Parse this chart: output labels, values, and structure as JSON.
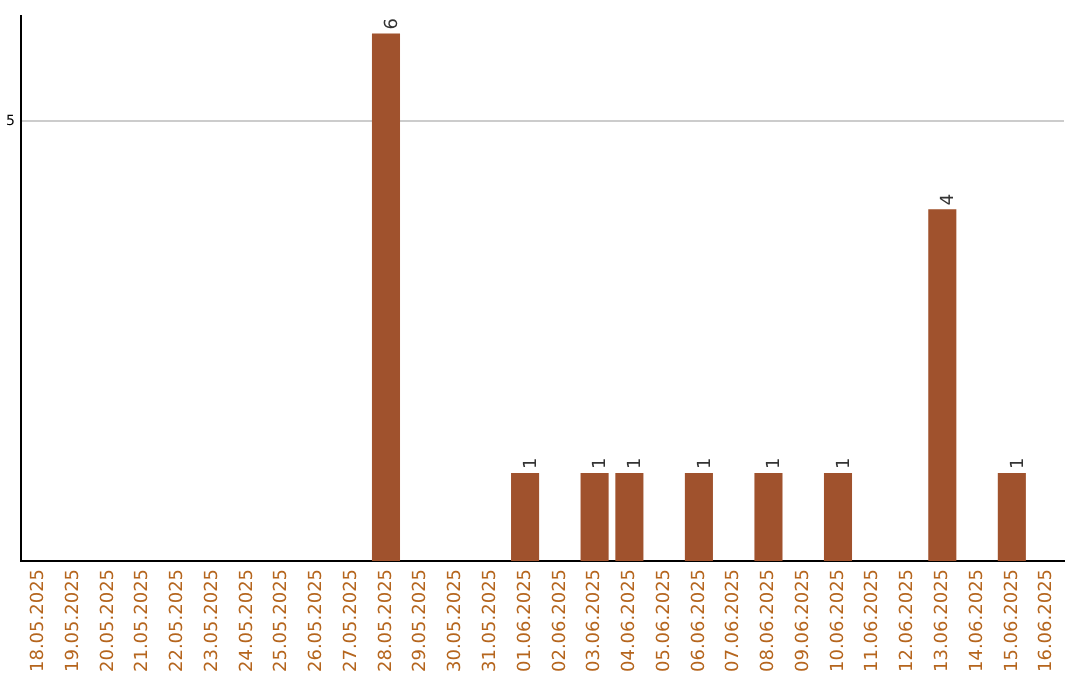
{
  "chart_data": {
    "type": "bar",
    "categories": [
      "18.05.2025",
      "19.05.2025",
      "20.05.2025",
      "21.05.2025",
      "22.05.2025",
      "23.05.2025",
      "24.05.2025",
      "25.05.2025",
      "26.05.2025",
      "27.05.2025",
      "28.05.2025",
      "29.05.2025",
      "30.05.2025",
      "31.05.2025",
      "01.06.2025",
      "02.06.2025",
      "03.06.2025",
      "04.06.2025",
      "05.06.2025",
      "06.06.2025",
      "07.06.2025",
      "08.06.2025",
      "09.06.2025",
      "10.06.2025",
      "11.06.2025",
      "12.06.2025",
      "13.06.2025",
      "14.06.2025",
      "15.06.2025",
      "16.06.2025"
    ],
    "values": [
      0,
      0,
      0,
      0,
      0,
      0,
      0,
      0,
      0,
      0,
      6,
      0,
      0,
      0,
      1,
      0,
      1,
      1,
      0,
      1,
      0,
      1,
      0,
      1,
      0,
      0,
      4,
      0,
      1,
      0
    ],
    "color": "#a0522d",
    "value_labels": [
      null,
      null,
      null,
      null,
      null,
      null,
      null,
      null,
      null,
      null,
      "6",
      null,
      null,
      null,
      "1",
      null,
      "1",
      "1",
      null,
      "1",
      null,
      "1",
      null,
      "1",
      null,
      null,
      "4",
      null,
      "1",
      null
    ],
    "ylim": [
      0,
      6.2
    ],
    "yticks": [
      5
    ],
    "grid": "y"
  }
}
